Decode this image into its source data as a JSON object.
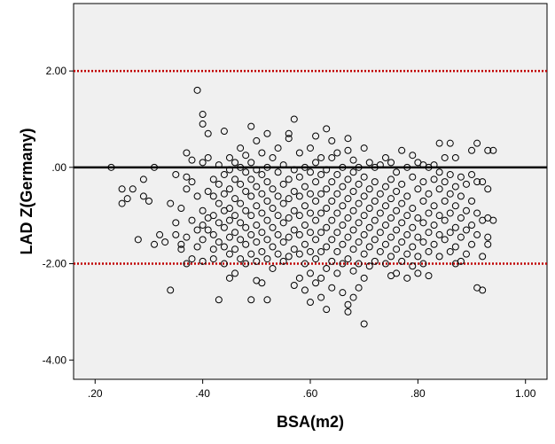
{
  "chart_data": {
    "type": "scatter",
    "title": "",
    "xlabel": "BSA(m2)",
    "ylabel": "LAD Z(Germany)",
    "xlim": [
      0.16,
      1.04
    ],
    "ylim": [
      -4.4,
      3.4
    ],
    "x_ticks": [
      0.2,
      0.4,
      0.6,
      0.8,
      1.0
    ],
    "x_tick_labels": [
      ".20",
      ".40",
      ".60",
      ".80",
      "1.00"
    ],
    "y_ticks": [
      2,
      0,
      -2,
      -4
    ],
    "y_tick_labels": [
      "2.00",
      ".00",
      "-2.00",
      "-4.00"
    ],
    "grid": false,
    "background_color": "#f0f0f0",
    "reference_lines": [
      {
        "y": 2,
        "style": "dotted",
        "color": "#c00000"
      },
      {
        "y": 0,
        "style": "solid",
        "color": "#000000"
      },
      {
        "y": -2,
        "style": "dotted",
        "color": "#c00000"
      }
    ],
    "marker": {
      "shape": "open-circle",
      "color": "#000000"
    },
    "points": [
      [
        0.23,
        0.0
      ],
      [
        0.25,
        -0.45
      ],
      [
        0.25,
        -0.75
      ],
      [
        0.26,
        -0.65
      ],
      [
        0.27,
        -0.45
      ],
      [
        0.28,
        -1.5
      ],
      [
        0.29,
        -0.25
      ],
      [
        0.29,
        -0.6
      ],
      [
        0.3,
        -0.7
      ],
      [
        0.31,
        0.0
      ],
      [
        0.31,
        -1.6
      ],
      [
        0.32,
        -1.4
      ],
      [
        0.33,
        -1.55
      ],
      [
        0.34,
        -2.55
      ],
      [
        0.34,
        -0.75
      ],
      [
        0.35,
        -0.15
      ],
      [
        0.35,
        -1.15
      ],
      [
        0.35,
        -1.4
      ],
      [
        0.36,
        -1.6
      ],
      [
        0.36,
        -1.7
      ],
      [
        0.36,
        -0.85
      ],
      [
        0.37,
        0.3
      ],
      [
        0.37,
        -0.2
      ],
      [
        0.37,
        -0.45
      ],
      [
        0.37,
        -1.45
      ],
      [
        0.37,
        -2.0
      ],
      [
        0.38,
        0.15
      ],
      [
        0.38,
        -0.3
      ],
      [
        0.38,
        -1.1
      ],
      [
        0.38,
        -1.9
      ],
      [
        0.39,
        1.6
      ],
      [
        0.39,
        -0.6
      ],
      [
        0.39,
        -1.3
      ],
      [
        0.39,
        -1.65
      ],
      [
        0.4,
        1.1
      ],
      [
        0.4,
        0.9
      ],
      [
        0.4,
        0.1
      ],
      [
        0.4,
        -0.9
      ],
      [
        0.4,
        -1.2
      ],
      [
        0.4,
        -1.5
      ],
      [
        0.4,
        -1.95
      ],
      [
        0.41,
        0.7
      ],
      [
        0.41,
        0.2
      ],
      [
        0.41,
        -0.5
      ],
      [
        0.41,
        -1.05
      ],
      [
        0.41,
        -1.3
      ],
      [
        0.42,
        -0.25
      ],
      [
        0.42,
        -0.6
      ],
      [
        0.42,
        -1.0
      ],
      [
        0.42,
        -1.4
      ],
      [
        0.42,
        -1.7
      ],
      [
        0.42,
        -1.9
      ],
      [
        0.43,
        0.05
      ],
      [
        0.43,
        -0.35
      ],
      [
        0.43,
        -0.75
      ],
      [
        0.43,
        -1.15
      ],
      [
        0.43,
        -1.55
      ],
      [
        0.43,
        -2.75
      ],
      [
        0.44,
        0.75
      ],
      [
        0.44,
        -0.15
      ],
      [
        0.44,
        -0.55
      ],
      [
        0.44,
        -0.9
      ],
      [
        0.44,
        -1.25
      ],
      [
        0.44,
        -1.65
      ],
      [
        0.44,
        -2.0
      ],
      [
        0.45,
        0.2
      ],
      [
        0.45,
        -0.05
      ],
      [
        0.45,
        -0.45
      ],
      [
        0.45,
        -0.85
      ],
      [
        0.45,
        -1.1
      ],
      [
        0.45,
        -1.45
      ],
      [
        0.45,
        -1.8
      ],
      [
        0.45,
        -2.3
      ],
      [
        0.46,
        0.1
      ],
      [
        0.46,
        -0.25
      ],
      [
        0.46,
        -0.65
      ],
      [
        0.46,
        -1.0
      ],
      [
        0.46,
        -1.35
      ],
      [
        0.46,
        -1.7
      ],
      [
        0.46,
        -2.2
      ],
      [
        0.47,
        0.4
      ],
      [
        0.47,
        0.0
      ],
      [
        0.47,
        -0.35
      ],
      [
        0.47,
        -0.75
      ],
      [
        0.47,
        -1.15
      ],
      [
        0.47,
        -1.5
      ],
      [
        0.47,
        -1.9
      ],
      [
        0.48,
        0.25
      ],
      [
        0.48,
        -0.1
      ],
      [
        0.48,
        -0.5
      ],
      [
        0.48,
        -0.9
      ],
      [
        0.48,
        -1.25
      ],
      [
        0.48,
        -1.6
      ],
      [
        0.48,
        -2.0
      ],
      [
        0.49,
        0.85
      ],
      [
        0.49,
        0.1
      ],
      [
        0.49,
        -0.25
      ],
      [
        0.49,
        -0.6
      ],
      [
        0.49,
        -1.0
      ],
      [
        0.49,
        -1.4
      ],
      [
        0.49,
        -1.8
      ],
      [
        0.49,
        -2.75
      ],
      [
        0.5,
        0.55
      ],
      [
        0.5,
        -0.05
      ],
      [
        0.5,
        -0.4
      ],
      [
        0.5,
        -0.8
      ],
      [
        0.5,
        -1.2
      ],
      [
        0.5,
        -1.55
      ],
      [
        0.5,
        -1.95
      ],
      [
        0.5,
        -2.35
      ],
      [
        0.51,
        0.3
      ],
      [
        0.51,
        -0.15
      ],
      [
        0.51,
        -0.55
      ],
      [
        0.51,
        -0.95
      ],
      [
        0.51,
        -1.35
      ],
      [
        0.51,
        -1.75
      ],
      [
        0.51,
        -2.4
      ],
      [
        0.52,
        0.7
      ],
      [
        0.52,
        0.0
      ],
      [
        0.52,
        -0.3
      ],
      [
        0.52,
        -0.7
      ],
      [
        0.52,
        -1.1
      ],
      [
        0.52,
        -1.5
      ],
      [
        0.52,
        -1.9
      ],
      [
        0.52,
        -2.75
      ],
      [
        0.53,
        0.2
      ],
      [
        0.53,
        -0.45
      ],
      [
        0.53,
        -0.85
      ],
      [
        0.53,
        -1.25
      ],
      [
        0.53,
        -1.65
      ],
      [
        0.53,
        -2.1
      ],
      [
        0.54,
        0.4
      ],
      [
        0.54,
        -0.1
      ],
      [
        0.54,
        -0.6
      ],
      [
        0.54,
        -1.0
      ],
      [
        0.54,
        -1.4
      ],
      [
        0.54,
        -1.8
      ],
      [
        0.55,
        0.05
      ],
      [
        0.55,
        -0.35
      ],
      [
        0.55,
        -0.75
      ],
      [
        0.55,
        -1.15
      ],
      [
        0.55,
        -1.55
      ],
      [
        0.55,
        -1.95
      ],
      [
        0.56,
        0.7
      ],
      [
        0.56,
        0.6
      ],
      [
        0.56,
        -0.25
      ],
      [
        0.56,
        -0.65
      ],
      [
        0.56,
        -1.05
      ],
      [
        0.56,
        -1.45
      ],
      [
        0.56,
        -1.85
      ],
      [
        0.57,
        1.0
      ],
      [
        0.57,
        -0.05
      ],
      [
        0.57,
        -0.5
      ],
      [
        0.57,
        -0.9
      ],
      [
        0.57,
        -1.3
      ],
      [
        0.57,
        -1.7
      ],
      [
        0.57,
        -2.45
      ],
      [
        0.58,
        0.3
      ],
      [
        0.58,
        -0.2
      ],
      [
        0.58,
        -0.6
      ],
      [
        0.58,
        -1.0
      ],
      [
        0.58,
        -1.4
      ],
      [
        0.58,
        -1.8
      ],
      [
        0.58,
        -2.3
      ],
      [
        0.59,
        0.0
      ],
      [
        0.59,
        -0.4
      ],
      [
        0.59,
        -0.8
      ],
      [
        0.59,
        -1.2
      ],
      [
        0.59,
        -1.6
      ],
      [
        0.59,
        -2.0
      ],
      [
        0.59,
        -2.55
      ],
      [
        0.6,
        0.4
      ],
      [
        0.6,
        -0.1
      ],
      [
        0.6,
        -0.55
      ],
      [
        0.6,
        -0.95
      ],
      [
        0.6,
        -1.35
      ],
      [
        0.6,
        -1.75
      ],
      [
        0.6,
        -2.2
      ],
      [
        0.6,
        -2.8
      ],
      [
        0.61,
        0.65
      ],
      [
        0.61,
        0.1
      ],
      [
        0.61,
        -0.3
      ],
      [
        0.61,
        -0.7
      ],
      [
        0.61,
        -1.1
      ],
      [
        0.61,
        -1.5
      ],
      [
        0.61,
        -1.9
      ],
      [
        0.61,
        -2.4
      ],
      [
        0.62,
        0.2
      ],
      [
        0.62,
        -0.15
      ],
      [
        0.62,
        -0.55
      ],
      [
        0.62,
        -0.95
      ],
      [
        0.62,
        -1.35
      ],
      [
        0.62,
        -1.75
      ],
      [
        0.62,
        -2.3
      ],
      [
        0.62,
        -2.7
      ],
      [
        0.63,
        0.8
      ],
      [
        0.63,
        -0.05
      ],
      [
        0.63,
        -0.45
      ],
      [
        0.63,
        -0.85
      ],
      [
        0.63,
        -1.25
      ],
      [
        0.63,
        -1.65
      ],
      [
        0.63,
        -2.1
      ],
      [
        0.63,
        -2.95
      ],
      [
        0.64,
        0.55
      ],
      [
        0.64,
        0.2
      ],
      [
        0.64,
        -0.3
      ],
      [
        0.64,
        -0.7
      ],
      [
        0.64,
        -1.1
      ],
      [
        0.64,
        -1.5
      ],
      [
        0.64,
        -1.95
      ],
      [
        0.64,
        -2.5
      ],
      [
        0.65,
        0.3
      ],
      [
        0.65,
        -0.15
      ],
      [
        0.65,
        -0.55
      ],
      [
        0.65,
        -0.95
      ],
      [
        0.65,
        -1.35
      ],
      [
        0.65,
        -1.75
      ],
      [
        0.65,
        -2.2
      ],
      [
        0.66,
        0.0
      ],
      [
        0.66,
        -0.4
      ],
      [
        0.66,
        -0.8
      ],
      [
        0.66,
        -1.2
      ],
      [
        0.66,
        -1.6
      ],
      [
        0.66,
        -2.0
      ],
      [
        0.66,
        -2.6
      ],
      [
        0.67,
        0.6
      ],
      [
        0.67,
        0.35
      ],
      [
        0.67,
        -0.25
      ],
      [
        0.67,
        -0.65
      ],
      [
        0.67,
        -1.05
      ],
      [
        0.67,
        -1.45
      ],
      [
        0.67,
        -1.9
      ],
      [
        0.67,
        -2.85
      ],
      [
        0.67,
        -3.0
      ],
      [
        0.68,
        0.15
      ],
      [
        0.68,
        -0.1
      ],
      [
        0.68,
        -0.5
      ],
      [
        0.68,
        -0.9
      ],
      [
        0.68,
        -1.3
      ],
      [
        0.68,
        -1.7
      ],
      [
        0.68,
        -2.15
      ],
      [
        0.68,
        -2.7
      ],
      [
        0.69,
        0.0
      ],
      [
        0.69,
        -0.35
      ],
      [
        0.69,
        -0.75
      ],
      [
        0.69,
        -1.15
      ],
      [
        0.69,
        -1.55
      ],
      [
        0.69,
        -2.0
      ],
      [
        0.69,
        -2.5
      ],
      [
        0.7,
        0.4
      ],
      [
        0.7,
        -0.2
      ],
      [
        0.7,
        -0.6
      ],
      [
        0.7,
        -1.0
      ],
      [
        0.7,
        -1.4
      ],
      [
        0.7,
        -1.8
      ],
      [
        0.7,
        -2.3
      ],
      [
        0.7,
        -3.25
      ],
      [
        0.71,
        0.1
      ],
      [
        0.71,
        -0.45
      ],
      [
        0.71,
        -0.85
      ],
      [
        0.71,
        -1.25
      ],
      [
        0.71,
        -1.65
      ],
      [
        0.71,
        -2.05
      ],
      [
        0.72,
        0.0
      ],
      [
        0.72,
        -0.3
      ],
      [
        0.72,
        -0.7
      ],
      [
        0.72,
        -1.1
      ],
      [
        0.72,
        -1.5
      ],
      [
        0.72,
        -1.95
      ],
      [
        0.73,
        0.05
      ],
      [
        0.73,
        -0.55
      ],
      [
        0.73,
        -0.95
      ],
      [
        0.73,
        -1.35
      ],
      [
        0.73,
        -1.75
      ],
      [
        0.74,
        0.2
      ],
      [
        0.74,
        -0.4
      ],
      [
        0.74,
        -0.8
      ],
      [
        0.74,
        -1.2
      ],
      [
        0.74,
        -1.6
      ],
      [
        0.74,
        -2.0
      ],
      [
        0.75,
        0.1
      ],
      [
        0.75,
        -0.25
      ],
      [
        0.75,
        -0.65
      ],
      [
        0.75,
        -1.05
      ],
      [
        0.75,
        -1.45
      ],
      [
        0.75,
        -1.85
      ],
      [
        0.75,
        -2.25
      ],
      [
        0.76,
        -0.1
      ],
      [
        0.76,
        -0.5
      ],
      [
        0.76,
        -0.9
      ],
      [
        0.76,
        -1.3
      ],
      [
        0.76,
        -1.7
      ],
      [
        0.76,
        -2.2
      ],
      [
        0.77,
        0.35
      ],
      [
        0.77,
        -0.35
      ],
      [
        0.77,
        -0.75
      ],
      [
        0.77,
        -1.15
      ],
      [
        0.77,
        -1.55
      ],
      [
        0.77,
        -1.95
      ],
      [
        0.78,
        0.0
      ],
      [
        0.78,
        -0.6
      ],
      [
        0.78,
        -1.0
      ],
      [
        0.78,
        -1.4
      ],
      [
        0.78,
        -1.8
      ],
      [
        0.78,
        -2.3
      ],
      [
        0.79,
        0.25
      ],
      [
        0.79,
        -0.2
      ],
      [
        0.79,
        -0.85
      ],
      [
        0.79,
        -1.25
      ],
      [
        0.79,
        -1.65
      ],
      [
        0.79,
        -2.05
      ],
      [
        0.8,
        0.1
      ],
      [
        0.8,
        -0.45
      ],
      [
        0.8,
        -1.05
      ],
      [
        0.8,
        -1.45
      ],
      [
        0.8,
        -1.85
      ],
      [
        0.8,
        -2.2
      ],
      [
        0.81,
        0.05
      ],
      [
        0.81,
        -0.3
      ],
      [
        0.81,
        -0.7
      ],
      [
        0.81,
        -1.15
      ],
      [
        0.81,
        -1.55
      ],
      [
        0.81,
        -2.0
      ],
      [
        0.82,
        0.0
      ],
      [
        0.82,
        -0.55
      ],
      [
        0.82,
        -0.95
      ],
      [
        0.82,
        -1.35
      ],
      [
        0.82,
        -1.75
      ],
      [
        0.82,
        -2.25
      ],
      [
        0.83,
        0.05
      ],
      [
        0.83,
        -0.25
      ],
      [
        0.83,
        -0.8
      ],
      [
        0.83,
        -1.2
      ],
      [
        0.83,
        -1.6
      ],
      [
        0.84,
        0.5
      ],
      [
        0.84,
        -0.1
      ],
      [
        0.84,
        -0.45
      ],
      [
        0.84,
        -1.0
      ],
      [
        0.84,
        -1.4
      ],
      [
        0.84,
        -1.85
      ],
      [
        0.85,
        0.2
      ],
      [
        0.85,
        -0.3
      ],
      [
        0.85,
        -0.7
      ],
      [
        0.85,
        -1.1
      ],
      [
        0.85,
        -1.5
      ],
      [
        0.86,
        0.5
      ],
      [
        0.86,
        -0.15
      ],
      [
        0.86,
        -0.55
      ],
      [
        0.86,
        -0.95
      ],
      [
        0.86,
        -1.35
      ],
      [
        0.86,
        -1.75
      ],
      [
        0.87,
        0.2
      ],
      [
        0.87,
        -0.4
      ],
      [
        0.87,
        -0.8
      ],
      [
        0.87,
        -1.25
      ],
      [
        0.87,
        -1.65
      ],
      [
        0.87,
        -2.0
      ],
      [
        0.88,
        -0.2
      ],
      [
        0.88,
        -0.6
      ],
      [
        0.88,
        -1.05
      ],
      [
        0.88,
        -1.45
      ],
      [
        0.88,
        -1.95
      ],
      [
        0.89,
        -0.35
      ],
      [
        0.89,
        -0.9
      ],
      [
        0.89,
        -1.3
      ],
      [
        0.89,
        -1.8
      ],
      [
        0.9,
        0.35
      ],
      [
        0.9,
        -0.15
      ],
      [
        0.9,
        -0.7
      ],
      [
        0.9,
        -1.2
      ],
      [
        0.9,
        -1.6
      ],
      [
        0.91,
        0.5
      ],
      [
        0.91,
        -0.3
      ],
      [
        0.91,
        -0.95
      ],
      [
        0.91,
        -1.4
      ],
      [
        0.91,
        -2.5
      ],
      [
        0.92,
        -0.3
      ],
      [
        0.92,
        -1.1
      ],
      [
        0.92,
        -1.85
      ],
      [
        0.92,
        -2.55
      ],
      [
        0.93,
        0.35
      ],
      [
        0.93,
        -0.45
      ],
      [
        0.93,
        -1.05
      ],
      [
        0.93,
        -1.45
      ],
      [
        0.93,
        -1.6
      ],
      [
        0.94,
        0.35
      ],
      [
        0.94,
        -1.1
      ]
    ]
  }
}
